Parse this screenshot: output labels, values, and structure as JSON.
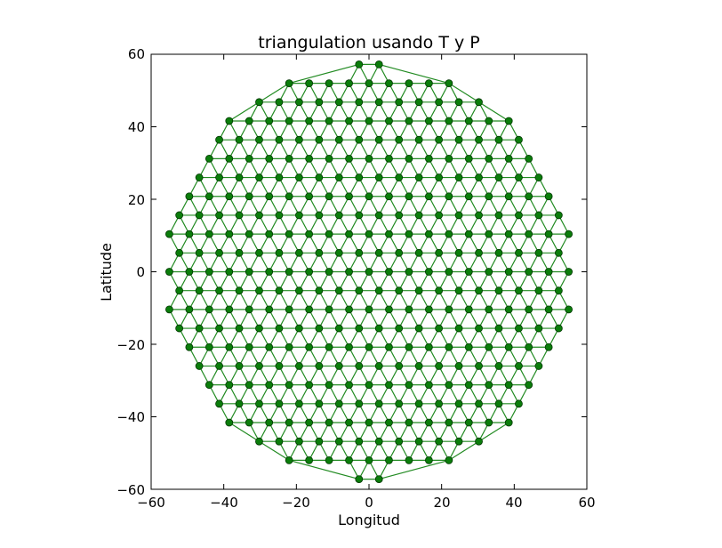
{
  "chart_data": {
    "type": "scatter",
    "title": "triangulation usando T y P",
    "xlabel": "Longitud",
    "ylabel": "Latitude",
    "xlim": [
      -60,
      60
    ],
    "ylim": [
      -60,
      60
    ],
    "x_ticks": [
      -60,
      -40,
      -20,
      0,
      20,
      40,
      60
    ],
    "y_ticks": [
      -60,
      -40,
      -20,
      0,
      20,
      40,
      60
    ],
    "x_tick_labels": [
      "−60",
      "−40",
      "−20",
      "0",
      "20",
      "40",
      "60"
    ],
    "y_tick_labels": [
      "−60",
      "−40",
      "−20",
      "0",
      "20",
      "40",
      "60"
    ],
    "grid": false,
    "legend": "none",
    "marker": "o",
    "mesh": "triangular lattice inside a circle, edges joining nearest neighbours",
    "circle_radius": 57.5,
    "row_spacing": 5.2,
    "point_spacing": 5.5,
    "colors": {
      "edge": "#228b22",
      "marker_fill": "#0b7d0b",
      "marker_edge": "#003600",
      "axes": "#000000"
    }
  }
}
